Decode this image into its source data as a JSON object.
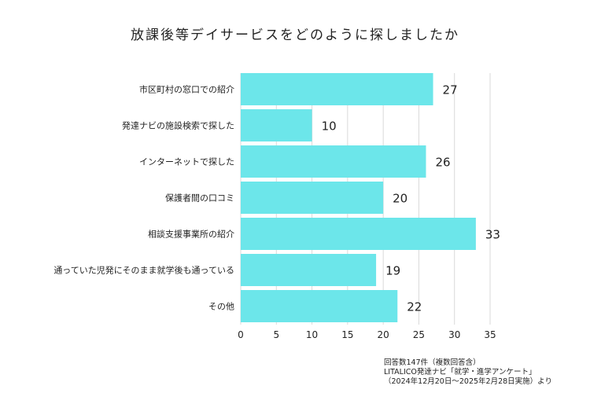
{
  "title": "放課後等デイサービスをどのように探しましたか",
  "chart_data": {
    "type": "bar",
    "orientation": "horizontal",
    "title": "放課後等デイサービスをどのように探しましたか",
    "categories": [
      "市区町村の窓口での紹介",
      "発達ナビの施設検索で探した",
      "インターネットで探した",
      "保護者間の口コミ",
      "相談支援事業所の紹介",
      "通っていた児発にそのまま就学後も通っている",
      "その他"
    ],
    "values": [
      27,
      10,
      26,
      20,
      33,
      19,
      22
    ],
    "xlim": [
      0,
      35
    ],
    "xticks": [
      0,
      5,
      10,
      15,
      20,
      25,
      30,
      35
    ],
    "grid": true,
    "bar_color": "#6ce6ea"
  },
  "footnote": {
    "line1": "回答数147件（複数回答含）",
    "line2": "LITALICO発達ナビ「就学・進学アンケート」",
    "line3": "（2024年12月20日～2025年2月28日実施）より"
  }
}
